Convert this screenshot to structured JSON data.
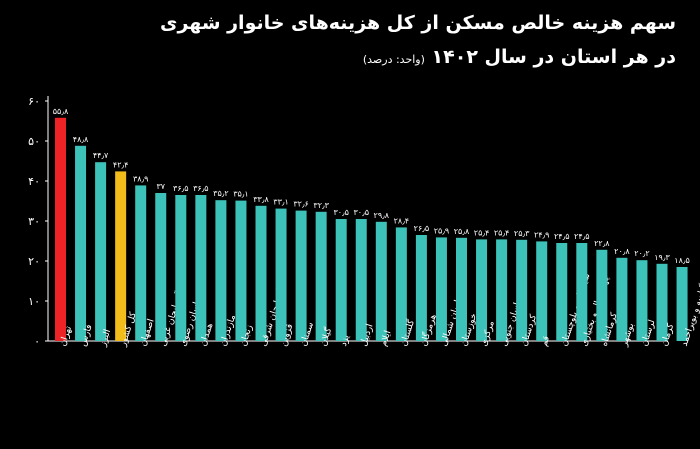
{
  "header": {
    "title": "سهم هزینه خالص مسکن از کل هزینه‌های خانوار شهری",
    "subtitle": "در هر استان در سال ۱۴۰۲",
    "unit": "(واحد: درصد)"
  },
  "colors": {
    "background": "#000000",
    "bar": "#3cc2b8",
    "highlight_red": "#ee2326",
    "highlight_yellow": "#f2bc1b",
    "axis": "#ffffff"
  },
  "chart_data": {
    "type": "bar",
    "title": "سهم هزینه خالص مسکن از کل هزینه‌های خانوار شهری در هر استان در سال ۱۴۰۲",
    "ylabel": "",
    "xlabel": "",
    "ylim": [
      0,
      60
    ],
    "yticks": [
      "۰",
      "۱۰",
      "۲۰",
      "۳۰",
      "۴۰",
      "۵۰",
      "۶۰"
    ],
    "grid": false,
    "categories": [
      "تهران",
      "فارس",
      "البرز",
      "کل کشور",
      "اصفهان",
      "آذربایجان غربی",
      "خراسان رضوی",
      "همدان",
      "مازندران",
      "زنجان",
      "آذربایجان شرقی",
      "قزوین",
      "سمنان",
      "گیلان",
      "یزد",
      "اردبیل",
      "ایلام",
      "گلستان",
      "هرمزگان",
      "خراسان شمالی",
      "خوزستان",
      "مرکزی",
      "خراسان جنوبی",
      "کردستان",
      "قم",
      "سیستان و بلوچستان",
      "چهارمحال و بختیاری",
      "کرمانشاه",
      "بوشهر",
      "لرستان",
      "کرمان",
      "کهگیلویه و بویراحمد"
    ],
    "values": [
      55.8,
      48.8,
      44.7,
      42.4,
      38.9,
      37.0,
      36.5,
      36.5,
      35.2,
      35.1,
      33.8,
      33.1,
      32.6,
      32.3,
      30.5,
      30.5,
      29.8,
      28.4,
      26.5,
      25.9,
      25.8,
      25.4,
      25.4,
      25.3,
      24.9,
      24.5,
      24.5,
      22.8,
      20.8,
      20.2,
      19.3,
      18.5
    ],
    "value_labels": [
      "۵۵٫۸",
      "۴۸٫۸",
      "۴۴٫۷",
      "۴۲٫۴",
      "۳۸٫۹",
      "۳۷",
      "۳۶٫۵",
      "۳۶٫۵",
      "۳۵٫۲",
      "۳۵٫۱",
      "۳۳٫۸",
      "۳۳٫۱",
      "۳۲٫۶",
      "۳۲٫۳",
      "۳۰٫۵",
      "۳۰٫۵",
      "۲۹٫۸",
      "۲۸٫۴",
      "۲۶٫۵",
      "۲۵٫۹",
      "۲۵٫۸",
      "۲۵٫۴",
      "۲۵٫۴",
      "۲۵٫۳",
      "۲۴٫۹",
      "۲۴٫۵",
      "۲۴٫۵",
      "۲۲٫۸",
      "۲۰٫۸",
      "۲۰٫۲",
      "۱۹٫۳",
      "۱۸٫۵"
    ],
    "highlights": {
      "تهران": "#ee2326",
      "کل کشور": "#f2bc1b"
    }
  }
}
